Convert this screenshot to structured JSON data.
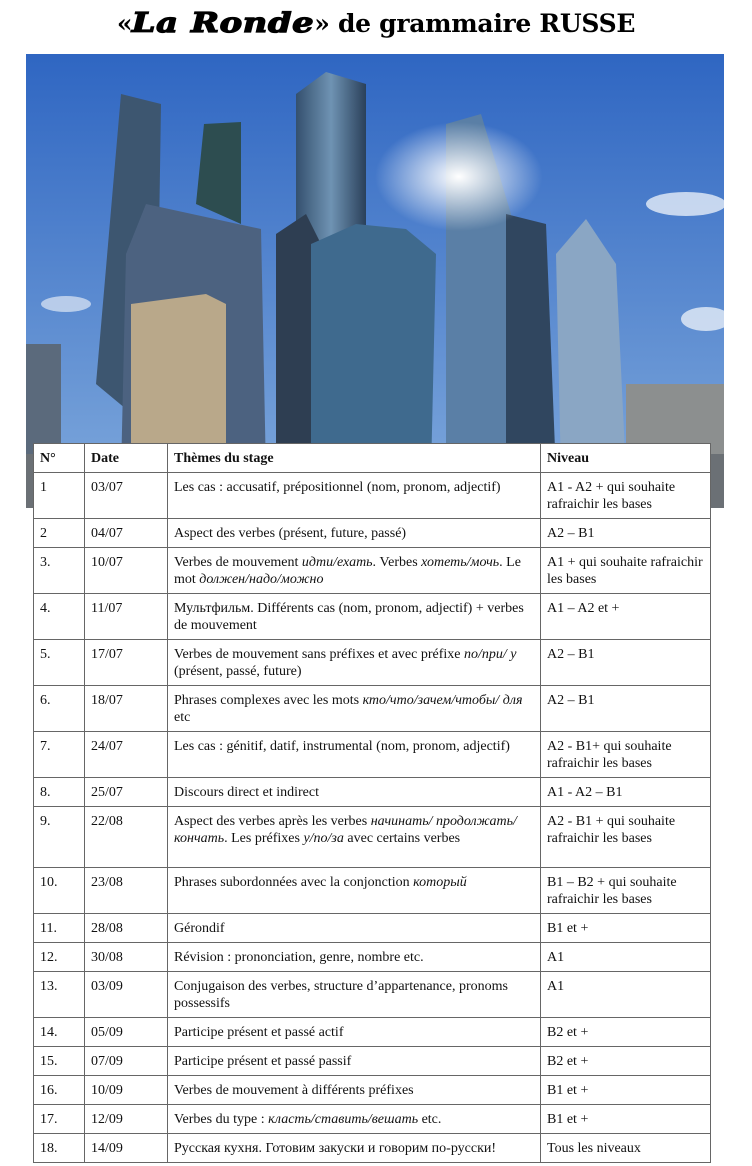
{
  "title": {
    "open_quote": "«",
    "logo_text": "La Ronde",
    "close_quote": "»",
    "rest": "de grammaire RUSSE"
  },
  "table": {
    "headers": [
      "N°",
      "Date",
      "Thèmes du stage",
      "Niveau"
    ],
    "rows": [
      {
        "n": "1",
        "date": "03/07",
        "theme": [
          {
            "t": "Les cas : accusatif, prépositionnel (nom, pronom, adjectif)"
          }
        ],
        "level": "A1 - A2 + qui souhaite rafraichir les bases"
      },
      {
        "n": "2",
        "date": "04/07",
        "theme": [
          {
            "t": "Aspect des verbes (présent, future, passé)"
          }
        ],
        "level": "A2 – B1"
      },
      {
        "n": "3.",
        "date": "10/07",
        "theme": [
          {
            "t": "Verbes de mouvement "
          },
          {
            "t": "идти/ехать",
            "i": true
          },
          {
            "t": ". Verbes "
          },
          {
            "t": "хотеть/мочь",
            "i": true
          },
          {
            "t": ". Le mot "
          },
          {
            "t": "должен/надо/можно",
            "i": true
          }
        ],
        "level": "A1 + qui souhaite rafraichir les bases"
      },
      {
        "n": "4.",
        "date": "11/07",
        "theme": [
          {
            "t": "Мультфильм. Différents cas (nom, pronom, adjectif) + verbes de mouvement"
          }
        ],
        "level": "A1 – A2 et +"
      },
      {
        "n": "5.",
        "date": "17/07",
        "theme": [
          {
            "t": "Verbes de mouvement sans préfixes et avec préfixe "
          },
          {
            "t": "по/при/ у",
            "i": true
          },
          {
            "t": " (présent, passé, future)"
          }
        ],
        "level": "A2 – B1"
      },
      {
        "n": "6.",
        "date": "18/07",
        "theme": [
          {
            "t": "Phrases complexes avec les mots "
          },
          {
            "t": "кто/что/зачем/чтобы/ для",
            "i": true
          },
          {
            "t": " etc"
          }
        ],
        "level": "A2 – B1"
      },
      {
        "n": "7.",
        "date": "24/07",
        "theme": [
          {
            "t": "Les cas : génitif,  datif, instrumental  (nom, pronom, adjectif)"
          }
        ],
        "level": "A2 - B1+ qui souhaite rafraichir les bases"
      },
      {
        "n": "8.",
        "date": "25/07",
        "theme": [
          {
            "t": "Discours direct et indirect"
          }
        ],
        "level": "A1 - A2 – B1"
      },
      {
        "n": "9.",
        "date": "22/08",
        "theme": [
          {
            "t": "Aspect des verbes après les verbes "
          },
          {
            "t": "начинать/ продолжать/кончать",
            "i": true
          },
          {
            "t": ". Les préfixes "
          },
          {
            "t": "у/по/за",
            "i": true
          },
          {
            "t": " avec certains verbes"
          }
        ],
        "level": "A2 - B1 + qui souhaite rafraichir les bases"
      },
      {
        "n": "10.",
        "date": "23/08",
        "theme": [
          {
            "t": "Phrases subordonnées avec la conjonction "
          },
          {
            "t": "который",
            "i": true
          }
        ],
        "level": "B1 – B2 + qui souhaite rafraichir les bases"
      },
      {
        "n": "11.",
        "date": "28/08",
        "theme": [
          {
            "t": "Gérondif"
          }
        ],
        "level": "B1 et +"
      },
      {
        "n": "12.",
        "date": "30/08",
        "theme": [
          {
            "t": "Révision : prononciation, genre, nombre etc."
          }
        ],
        "level": "A1"
      },
      {
        "n": "13.",
        "date": "03/09",
        "theme": [
          {
            "t": "Conjugaison des verbes, structure d’appartenance,  pronoms possessifs"
          }
        ],
        "level": "A1"
      },
      {
        "n": "14.",
        "date": "05/09",
        "theme": [
          {
            "t": "Participe présent et passé actif"
          }
        ],
        "level": "B2 et +"
      },
      {
        "n": "15.",
        "date": "07/09",
        "theme": [
          {
            "t": "Participe présent et passé passif"
          }
        ],
        "level": "B2 et +"
      },
      {
        "n": "16.",
        "date": "10/09",
        "theme": [
          {
            "t": "Verbes de mouvement à différents préfixes"
          }
        ],
        "level": "B1 et +"
      },
      {
        "n": "17.",
        "date": "12/09",
        "theme": [
          {
            "t": "Verbes du type : "
          },
          {
            "t": "класть/ставить/вешать",
            "i": true
          },
          {
            "t": " etc."
          }
        ],
        "level": "B1 et +"
      },
      {
        "n": "18.",
        "date": "14/09",
        "theme": [
          {
            "t": "Русская кухня. Готовим закуски и говорим по-русски!"
          }
        ],
        "level": "Tous les niveaux"
      }
    ]
  }
}
